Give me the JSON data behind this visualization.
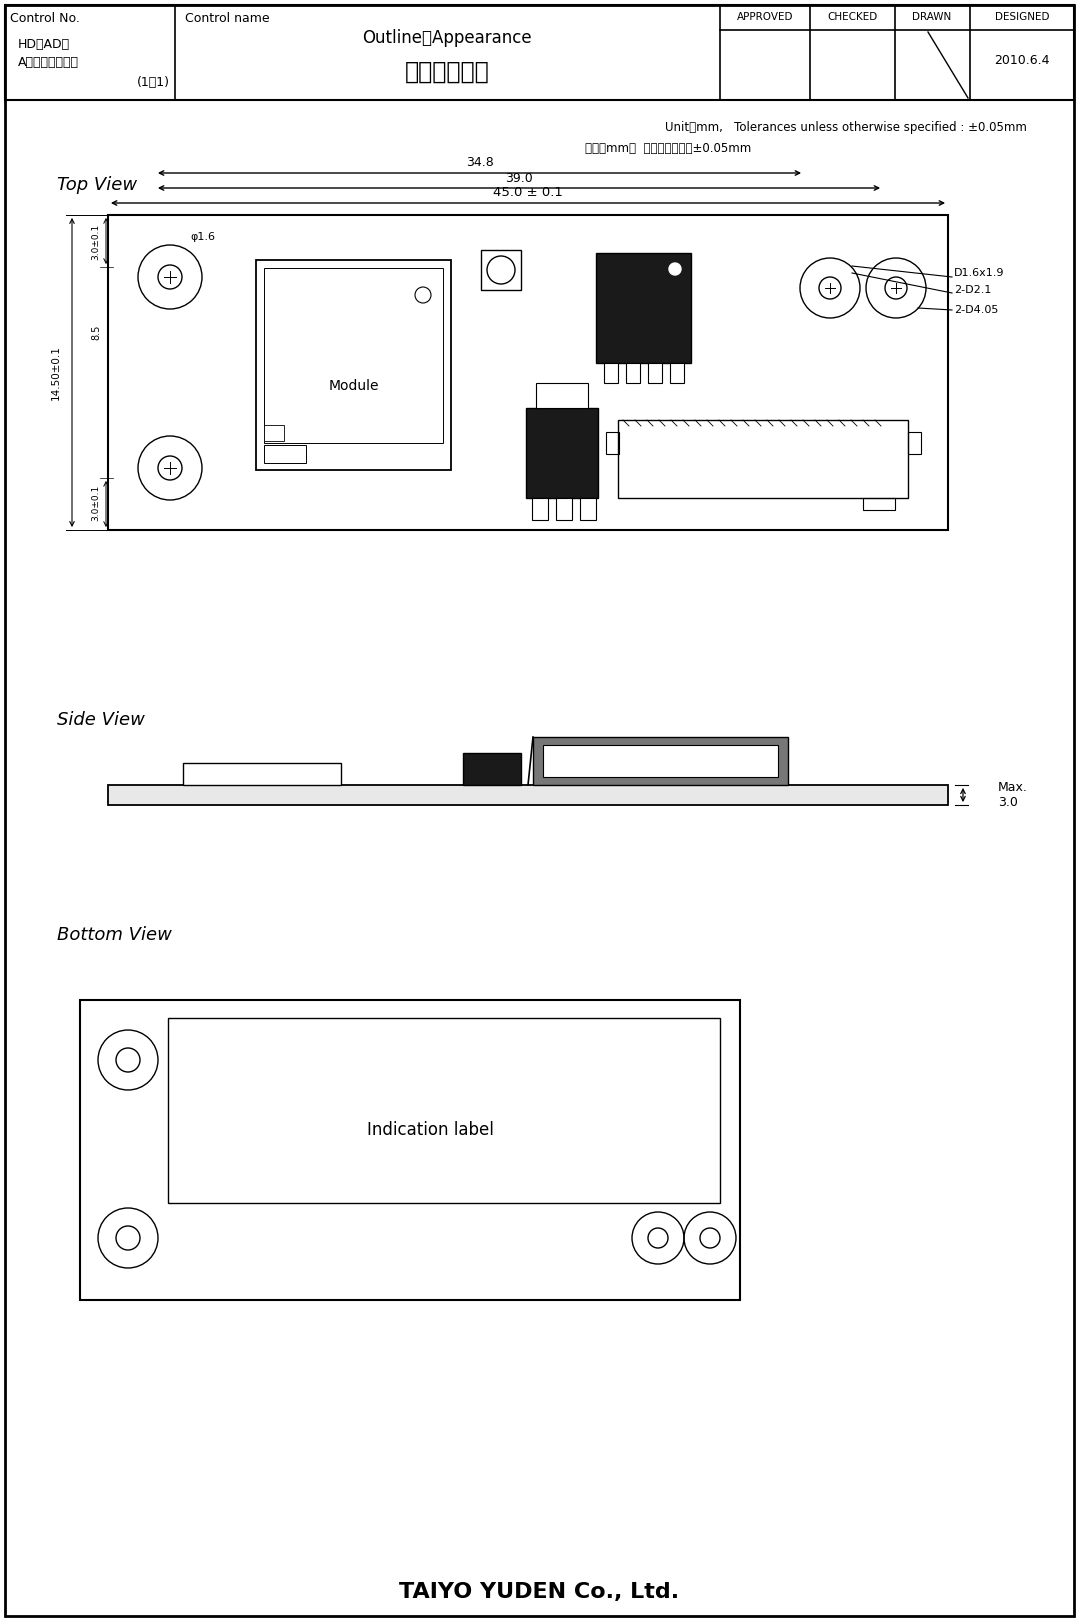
{
  "title_company": "TAIYO YUDEN Co., Ltd.",
  "control_no_label": "Control No.",
  "control_name_label": "Control name",
  "control_name_en": "Outline・Appearance",
  "control_name_jp": "外形・外観図",
  "approved": "APPROVED",
  "checked": "CHECKED",
  "drawn": "DRAWN",
  "designed": "DESIGNED",
  "date": "2010.6.4",
  "hd_line1": "HD－AD－",
  "hd_line2": "A１０００００１",
  "hd_sub": "(1／1)",
  "unit_note_en": "Unit：mm,   Tolerances unless otherwise specified : ±0.05mm",
  "unit_note_jp": "単位：mm，  指示無き公差：±0.05mm",
  "top_view_label": "Top View",
  "side_view_label": "Side View",
  "bottom_view_label": "Bottom View",
  "dim_45": "45.0 ± 0.1",
  "dim_39": "39.0",
  "dim_34_8": "34.8",
  "dim_d1": "D1.6x1.9",
  "dim_d2": "2-D2.1",
  "dim_d3": "2-D4.05",
  "dim_phi": "φ1.6",
  "dim_14_50": "14.50±0.1",
  "dim_3_0_top": "3.0±0.1",
  "dim_3_0_bot": "3.0±0.1",
  "dim_8_5": "8.5",
  "dim_max_3": "Max.\n3.0",
  "module_label": "Module",
  "indication_label": "Indication label",
  "bg_color": "#ffffff",
  "line_color": "#000000"
}
